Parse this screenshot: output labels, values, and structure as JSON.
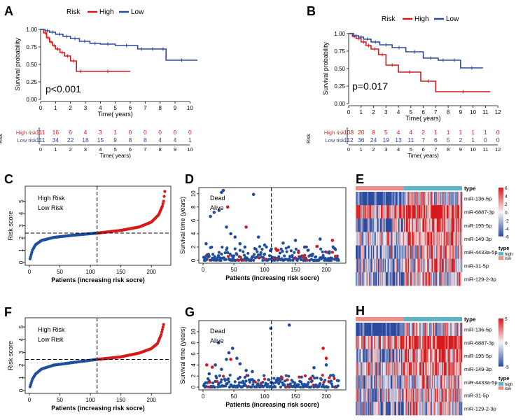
{
  "colors": {
    "high": "#d7191c",
    "low": "#2b4aa0",
    "dead": "#d7191c",
    "alive": "#1f4e9c",
    "axis": "#000000",
    "heat_pos": "#d7191c",
    "heat_neg": "#2b4aa0",
    "heat_mid": "#f4f4f4",
    "type_high": "#5ab4c5",
    "type_low": "#f08d86"
  },
  "chart_data": [
    {
      "panel": "A",
      "type": "line",
      "title": "",
      "legend": {
        "title": "Risk",
        "entries": [
          "High",
          "Low"
        ]
      },
      "xlabel": "Time( years)",
      "ylabel": "Survival probability",
      "xlim": [
        0,
        10.5
      ],
      "ylim": [
        0,
        1
      ],
      "xticks": [
        0,
        1,
        2,
        3,
        4,
        5,
        6,
        7,
        8,
        9,
        10
      ],
      "yticks": [
        "0.00",
        "0.25",
        "0.50",
        "0.75",
        "1.00"
      ],
      "pvalue": "p<0.001",
      "series": [
        {
          "name": "High",
          "x": [
            0,
            0.2,
            0.4,
            0.6,
            0.8,
            1.0,
            1.3,
            1.6,
            2.0,
            2.4,
            3.0,
            6.0
          ],
          "y": [
            1.0,
            0.95,
            0.88,
            0.82,
            0.77,
            0.72,
            0.67,
            0.62,
            0.55,
            0.4,
            0.4,
            0.4
          ]
        },
        {
          "name": "Low",
          "x": [
            0,
            0.3,
            0.6,
            1.0,
            1.5,
            2.0,
            2.6,
            3.3,
            4.0,
            5.0,
            6.5,
            7.0,
            8.0,
            8.4,
            10.5
          ],
          "y": [
            1.0,
            0.98,
            0.96,
            0.93,
            0.9,
            0.87,
            0.83,
            0.8,
            0.79,
            0.77,
            0.72,
            0.72,
            0.72,
            0.56,
            0.56
          ]
        }
      ],
      "risk_table": {
        "ylabel": "Risk",
        "xlabel": "Time( years)",
        "rows": [
          {
            "label": "High risk",
            "values": [
              "111",
              "16",
              "6",
              "4",
              "3",
              "1",
              "0",
              "0",
              "0",
              "0",
              "0"
            ]
          },
          {
            "label": "Low risk",
            "values": [
              "111",
              "34",
              "22",
              "18",
              "15",
              "9",
              "8",
              "8",
              "4",
              "4",
              "1"
            ]
          }
        ]
      }
    },
    {
      "panel": "B",
      "type": "line",
      "title": "",
      "legend": {
        "title": "Risk",
        "entries": [
          "High",
          "Low"
        ]
      },
      "xlabel": "Time( years)",
      "ylabel": "Survival probability",
      "xlim": [
        0,
        12.5
      ],
      "ylim": [
        0,
        1
      ],
      "xticks": [
        0,
        1,
        2,
        3,
        4,
        5,
        6,
        7,
        8,
        9,
        10,
        11,
        12
      ],
      "yticks": [
        "0.00",
        "0.25",
        "0.50",
        "0.75",
        "1.00"
      ],
      "pvalue": "p=0.017",
      "series": [
        {
          "name": "High",
          "x": [
            0,
            0.3,
            0.6,
            1.0,
            1.4,
            1.8,
            2.4,
            3.0,
            4.0,
            5.8,
            7.0,
            11.4
          ],
          "y": [
            1.0,
            0.96,
            0.93,
            0.88,
            0.83,
            0.78,
            0.7,
            0.55,
            0.45,
            0.32,
            0.17,
            0.17
          ]
        },
        {
          "name": "Low",
          "x": [
            0,
            0.4,
            0.8,
            1.2,
            1.8,
            2.5,
            3.5,
            4.6,
            6.0,
            7.2,
            8.0,
            9.0,
            10.8
          ],
          "y": [
            1.0,
            0.97,
            0.95,
            0.92,
            0.88,
            0.84,
            0.8,
            0.74,
            0.65,
            0.62,
            0.62,
            0.51,
            0.51
          ]
        }
      ],
      "risk_table": {
        "ylabel": "Risk",
        "xlabel": "Time( years)",
        "rows": [
          {
            "label": "High risk",
            "values": [
              "108",
              "20",
              "8",
              "5",
              "4",
              "4",
              "2",
              "1",
              "1",
              "1",
              "1",
              "1",
              "0"
            ]
          },
          {
            "label": "Low risk",
            "values": [
              "112",
              "36",
              "24",
              "19",
              "13",
              "11",
              "7",
              "6",
              "5",
              "2",
              "1",
              "0",
              "0"
            ]
          }
        ]
      }
    },
    {
      "panel": "C",
      "type": "scatter",
      "legend": {
        "entries": [
          "High Risk",
          "Low Risk"
        ]
      },
      "xlabel": "Patients (increasing risk socre)",
      "ylabel": "Risk score",
      "xlim": [
        0,
        225
      ],
      "ylim": [
        0,
        6
      ],
      "xticks": [
        0,
        50,
        100,
        150,
        200
      ],
      "yticks": [
        0,
        1,
        2,
        3,
        4,
        5
      ],
      "cutoff_x": 111,
      "cutoff_y": 2.4,
      "n": 222,
      "score_curve": [
        [
          1,
          0.3
        ],
        [
          5,
          1.0
        ],
        [
          10,
          1.45
        ],
        [
          20,
          1.8
        ],
        [
          40,
          2.05
        ],
        [
          70,
          2.22
        ],
        [
          111,
          2.4
        ],
        [
          150,
          2.62
        ],
        [
          180,
          2.9
        ],
        [
          200,
          3.3
        ],
        [
          212,
          3.9
        ],
        [
          218,
          4.6
        ],
        [
          220,
          5.0
        ],
        [
          222,
          5.8
        ]
      ]
    },
    {
      "panel": "D",
      "type": "scatter",
      "legend": {
        "entries": [
          "Dead",
          "Alive"
        ]
      },
      "xlabel": "Patients (increasing risk socre)",
      "ylabel": "Survival time (years)",
      "xlim": [
        0,
        225
      ],
      "ylim": [
        0,
        10.5
      ],
      "xticks": [
        0,
        50,
        100,
        150,
        200
      ],
      "yticks": [
        0,
        2,
        4,
        6,
        8,
        10
      ],
      "cutoff_x": 111,
      "alive_points": [
        [
          5,
          2.5
        ],
        [
          12,
          6.6
        ],
        [
          18,
          7.2
        ],
        [
          26,
          7.5
        ],
        [
          30,
          10.2
        ],
        [
          33,
          10.5
        ],
        [
          38,
          5.0
        ],
        [
          45,
          4.0
        ],
        [
          52,
          3.5
        ],
        [
          60,
          2.5
        ],
        [
          68,
          2.0
        ],
        [
          82,
          9.9
        ],
        [
          90,
          3.5
        ],
        [
          100,
          2.3
        ],
        [
          130,
          2.6
        ],
        [
          150,
          3.0
        ],
        [
          165,
          2.0
        ],
        [
          190,
          3.2
        ],
        [
          205,
          1.3
        ]
      ],
      "dead_points": [
        [
          40,
          8.0
        ],
        [
          70,
          5.0
        ],
        [
          120,
          1.5
        ],
        [
          155,
          1.2
        ],
        [
          185,
          2.1
        ],
        [
          210,
          3.0
        ],
        [
          215,
          0.6
        ]
      ]
    },
    {
      "panel": "E",
      "type": "heatmap",
      "rows": [
        "miR-136-5p",
        "miR-6887-3p",
        "miR-195-5p",
        "miR-149-3p",
        "miR-4433a-5p",
        "miR-31-5p",
        "miR-129-2-3p"
      ],
      "colorbar_ticks": [
        "6",
        "4",
        "2",
        "0",
        "-2",
        "-4",
        "-6"
      ],
      "type_legend": {
        "title": "type",
        "entries": [
          "high",
          "low"
        ]
      },
      "annotation_label": "type"
    },
    {
      "panel": "F",
      "type": "scatter",
      "legend": {
        "entries": [
          "High Risk",
          "Low Risk"
        ]
      },
      "xlabel": "Patients (increasing risk socre)",
      "ylabel": "Risk score",
      "xlim": [
        0,
        225
      ],
      "ylim": [
        0,
        5.5
      ],
      "xticks": [
        0,
        50,
        100,
        150,
        200
      ],
      "yticks": [
        0,
        1,
        2,
        3,
        4,
        5
      ],
      "cutoff_x": 111,
      "cutoff_y": 2.45,
      "n": 220,
      "score_curve": [
        [
          1,
          0.3
        ],
        [
          5,
          0.9
        ],
        [
          10,
          1.3
        ],
        [
          20,
          1.7
        ],
        [
          40,
          2.0
        ],
        [
          70,
          2.2
        ],
        [
          111,
          2.45
        ],
        [
          150,
          2.65
        ],
        [
          180,
          2.95
        ],
        [
          200,
          3.3
        ],
        [
          210,
          3.7
        ],
        [
          216,
          4.4
        ],
        [
          220,
          5.2
        ]
      ]
    },
    {
      "panel": "G",
      "type": "scatter",
      "legend": {
        "entries": [
          "Dead",
          "Alive"
        ]
      },
      "xlabel": "Patients (increasing risk socre)",
      "ylabel": "Survival time (years)",
      "xlim": [
        0,
        225
      ],
      "ylim": [
        0,
        11.5
      ],
      "xticks": [
        0,
        50,
        100,
        150,
        200
      ],
      "yticks": [
        0,
        2,
        4,
        6,
        8,
        10
      ],
      "cutoff_x": 111,
      "alive_points": [
        [
          10,
          2.4
        ],
        [
          20,
          4.0
        ],
        [
          25,
          8.0
        ],
        [
          30,
          3.2
        ],
        [
          38,
          5.0
        ],
        [
          42,
          6.2
        ],
        [
          48,
          7.0
        ],
        [
          55,
          5.2
        ],
        [
          60,
          4.2
        ],
        [
          70,
          3.0
        ],
        [
          80,
          2.8
        ],
        [
          110,
          10.6
        ],
        [
          140,
          11.2
        ],
        [
          180,
          3.5
        ],
        [
          200,
          4.0
        ]
      ],
      "dead_points": [
        [
          6,
          4.0
        ],
        [
          15,
          3.6
        ],
        [
          45,
          5.0
        ],
        [
          128,
          1.7
        ],
        [
          175,
          1.6
        ],
        [
          195,
          7.0
        ],
        [
          200,
          5.2
        ]
      ]
    },
    {
      "panel": "H",
      "type": "heatmap",
      "rows": [
        "miR-136-5p",
        "miR-6887-3p",
        "miR-195-5p",
        "miR-149-3p",
        "miR-4433a-5p",
        "miR-31-5p",
        "miR-129-2-3p"
      ],
      "colorbar_ticks": [
        "5",
        "0",
        "-5"
      ],
      "type_legend": {
        "title": "type",
        "entries": [
          "high",
          "low"
        ]
      },
      "annotation_label": "type"
    }
  ]
}
